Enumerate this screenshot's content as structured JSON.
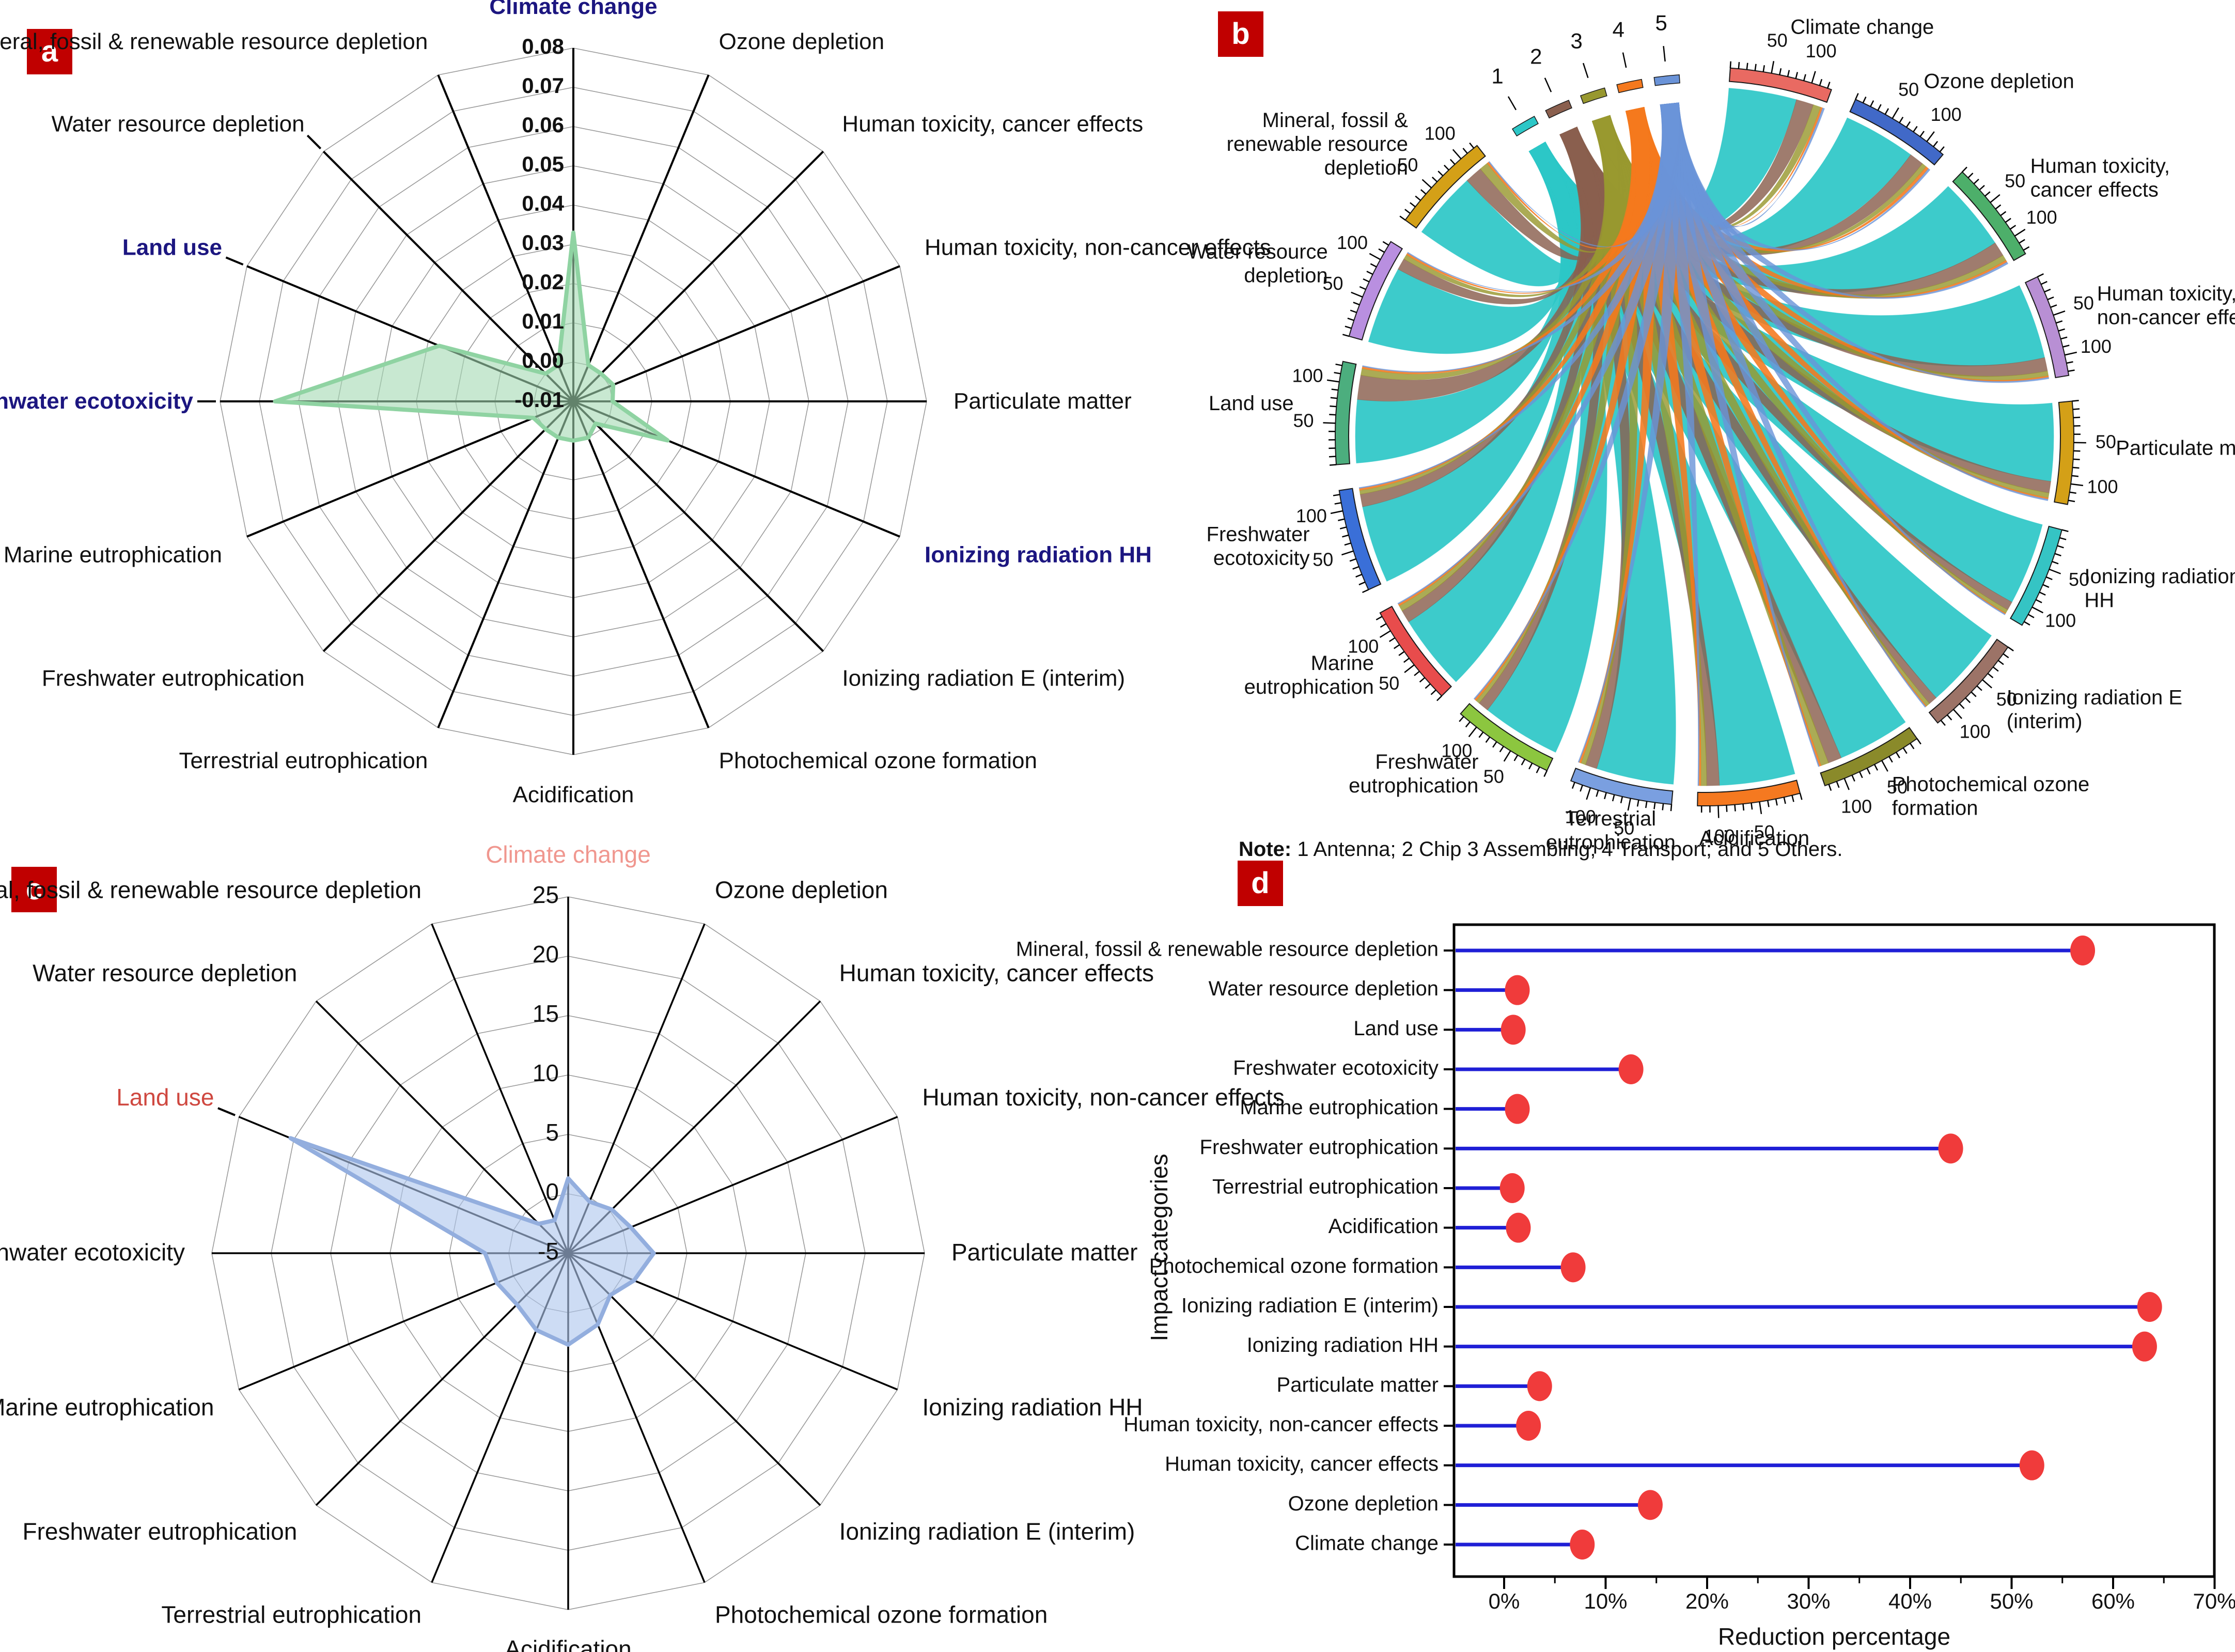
{
  "panels": {
    "a": {
      "letter": "a"
    },
    "b": {
      "letter": "b",
      "note_label": "Note:",
      "note_text": " 1 Antenna; 2 Chip 3 Assembling; 4 Transport; and 5 Others."
    },
    "c": {
      "letter": "c"
    },
    "d": {
      "letter": "d"
    }
  },
  "chart_data": [
    {
      "id": "a",
      "type": "radar",
      "title": "",
      "rmin": -0.01,
      "rmax": 0.08,
      "rstep": 0.01,
      "tick_labels": [
        "0.08",
        "0.07",
        "0.06",
        "0.05",
        "0.04",
        "0.03",
        "0.02",
        "0.01",
        "0.00",
        "-0.01"
      ],
      "categories": [
        "Climate change",
        "Ozone depletion",
        "Human toxicity, cancer effects",
        "Human toxicity, non-cancer effects",
        "Particulate matter",
        "Ionizing radiation HH",
        "Ionizing radiation E (interim)",
        "Photochemical ozone formation",
        "Acidification",
        "Terrestrial eutrophication",
        "Freshwater eutrophication",
        "Marine eutrophication",
        "Freshwater ecotoxicity",
        "Land use",
        "Water resource depletion",
        "Mineral, fossil & renewable resource depletion"
      ],
      "highlight_indices": [
        0,
        5,
        12,
        13
      ],
      "leader_indices": [
        12,
        13,
        14
      ],
      "values": [
        0.033,
        0.0,
        0.0,
        0.001,
        0.0,
        0.016,
        -0.002,
        0.0,
        0.0,
        0.0,
        0.0,
        0.001,
        0.066,
        0.027,
        0.0,
        0.0
      ],
      "colors": {
        "fill": "rgba(163,217,178,0.60)",
        "stroke": "#8fd3a2",
        "highlight_text": "#1c1680",
        "text": "#111111",
        "grid": "#9a9a9a",
        "spoke": "#000000"
      }
    },
    {
      "id": "b",
      "type": "chord",
      "note": "Note: 1 Antenna; 2 Chip 3 Assembling; 4 Transport; and 5 Others.",
      "axis_tick_labels": [
        "50",
        "100"
      ],
      "sources": [
        {
          "num": "1",
          "name": "Antenna",
          "color": "#2cc7c7",
          "opacity": 0.92
        },
        {
          "num": "2",
          "name": "Chip",
          "color": "#8a5f4e",
          "opacity": 0.82
        },
        {
          "num": "3",
          "name": "Assembling",
          "color": "#98982f",
          "opacity": 0.82
        },
        {
          "num": "4",
          "name": "Transport",
          "color": "#f5791e",
          "opacity": 0.88
        },
        {
          "num": "5",
          "name": "Others",
          "color": "#6a93d8",
          "opacity": 0.8
        }
      ],
      "categories": [
        {
          "lines": [
            "Climate change"
          ],
          "color": "#e96a62",
          "flows": [
            70,
            18,
            8,
            2,
            2
          ]
        },
        {
          "lines": [
            "Ozone depletion"
          ],
          "color": "#4169c8",
          "flows": [
            75,
            15,
            5,
            3,
            2
          ]
        },
        {
          "lines": [
            "Human toxicity,",
            "cancer effects"
          ],
          "color": "#4daf6a",
          "flows": [
            75,
            15,
            6,
            2,
            2
          ]
        },
        {
          "lines": [
            "Human toxicity,",
            "non-cancer effects"
          ],
          "color": "#b88fd4",
          "flows": [
            78,
            14,
            5,
            1.5,
            1.5
          ]
        },
        {
          "lines": [
            "Particulate matter"
          ],
          "color": "#d4a017",
          "flows": [
            80,
            12,
            5,
            1.5,
            1.5
          ]
        },
        {
          "lines": [
            "Ionizing radiation",
            "HH"
          ],
          "color": "#35c4c4",
          "flows": [
            85,
            9,
            4,
            1,
            1
          ]
        },
        {
          "lines": [
            "Ionizing radiation E",
            "(interim)"
          ],
          "color": "#9c7367",
          "flows": [
            85,
            9,
            4,
            1,
            1
          ]
        },
        {
          "lines": [
            "Photochemical ozone",
            "formation"
          ],
          "color": "#8a8a2a",
          "flows": [
            75,
            14,
            8,
            2,
            1
          ]
        },
        {
          "lines": [
            "Acidification"
          ],
          "color": "#f57920",
          "flows": [
            78,
            13,
            6,
            2,
            1
          ]
        },
        {
          "lines": [
            "Terrestrial",
            "eutrophication"
          ],
          "color": "#7a9fe0",
          "flows": [
            80,
            12,
            5,
            2,
            1
          ]
        },
        {
          "lines": [
            "Freshwater",
            "eutrophication"
          ],
          "color": "#8cc63f",
          "flows": [
            82,
            11,
            4,
            2,
            1
          ]
        },
        {
          "lines": [
            "Marine",
            "eutrophication"
          ],
          "color": "#e84c4c",
          "flows": [
            78,
            13,
            6,
            2,
            1
          ]
        },
        {
          "lines": [
            "Freshwater",
            "ecotoxicity"
          ],
          "color": "#3a6fd8",
          "flows": [
            80,
            13,
            4,
            2,
            1
          ]
        },
        {
          "lines": [
            "Land use"
          ],
          "color": "#4cae7e",
          "flows": [
            65,
            25,
            7,
            2,
            1
          ]
        },
        {
          "lines": [
            "Water resource",
            "depletion"
          ],
          "color": "#b98fe0",
          "flows": [
            80,
            12,
            5,
            2,
            1
          ]
        },
        {
          "lines": [
            "Mineral, fossil &",
            "renewable resource",
            "depletion"
          ],
          "color": "#d4a017",
          "flows": [
            70,
            18,
            9,
            2,
            1
          ]
        }
      ]
    },
    {
      "id": "c",
      "type": "radar",
      "title": "",
      "rmin": -5,
      "rmax": 25,
      "rstep": 5,
      "tick_labels": [
        "25",
        "20",
        "15",
        "10",
        "5",
        "0",
        "-5"
      ],
      "categories": [
        "Climate change",
        "Ozone depletion",
        "Human toxicity, cancer effects",
        "Human toxicity, non-cancer effects",
        "Particulate matter",
        "Ionizing radiation HH",
        "Ionizing radiation E (interim)",
        "Photochemical ozone formation",
        "Acidification",
        "Terrestrial eutrophication",
        "Freshwater eutrophication",
        "Marine eutrophication",
        "Freshwater ecotoxicity",
        "Land use",
        "Water resource depletion",
        "Mineral, fossil & renewable resource depletion"
      ],
      "highlight_indices": [],
      "salmon_index": 0,
      "red_index": 13,
      "leader_indices": [
        13
      ],
      "values": [
        1.3,
        -0.3,
        0.2,
        0.7,
        2.2,
        1.0,
        0.0,
        1.5,
        2.7,
        2.0,
        1.1,
        1.5,
        2.0,
        20.3,
        -1.5,
        -2.0
      ],
      "colors": {
        "fill": "rgba(174,198,238,0.62)",
        "stroke": "#93aede",
        "salmon_text": "#f0978f",
        "red_text": "#cf4840",
        "text": "#111111",
        "grid": "#9a9a9a",
        "spoke": "#000000"
      }
    },
    {
      "id": "d",
      "type": "lollipop",
      "xlabel": "Reduction percentage",
      "ylabel": "Impact categories",
      "x_tick_labels": [
        "0%",
        "10%",
        "20%",
        "30%",
        "40%",
        "50%",
        "60%",
        "70%"
      ],
      "x_tick_values": [
        0,
        10,
        20,
        30,
        40,
        50,
        60,
        70
      ],
      "xlim": [
        -4.9,
        70
      ],
      "categories": [
        "Mineral, fossil & renewable resource depletion",
        "Water resource depletion",
        "Land use",
        "Freshwater ecotoxicity",
        "Marine eutrophication",
        "Freshwater eutrophication",
        "Terrestrial eutrophication",
        "Acidification",
        "Photochemical ozone formation",
        "Ionizing radiation E (interim)",
        "Ionizing radiation HH",
        "Particulate matter",
        "Human toxicity, non-cancer effects",
        "Human toxicity, cancer effects",
        "Ozone depletion",
        "Climate change"
      ],
      "values": [
        57.0,
        1.3,
        0.9,
        12.5,
        1.3,
        44.0,
        0.8,
        1.4,
        6.8,
        63.6,
        63.1,
        3.5,
        2.4,
        52.0,
        14.4,
        7.7
      ],
      "colors": {
        "stem": "#1f1fd6",
        "dot": "#f03b3b",
        "axis": "#000000",
        "text": "#111111"
      }
    }
  ]
}
